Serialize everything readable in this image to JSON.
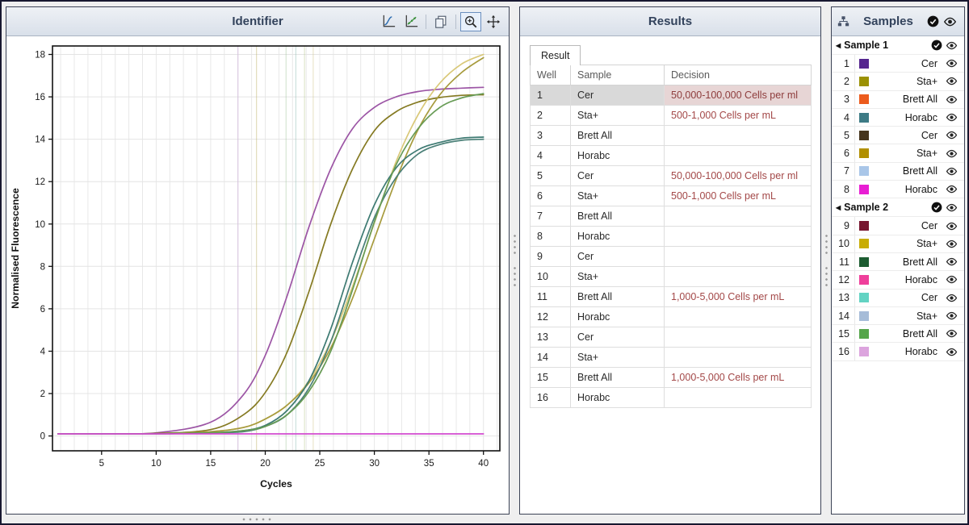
{
  "identifier": {
    "title": "Identifier",
    "toolbar": [
      {
        "name": "amplification-view"
      },
      {
        "name": "log-view"
      },
      {
        "name": "copy"
      },
      {
        "name": "zoom",
        "selected": true
      },
      {
        "name": "pan"
      }
    ]
  },
  "results": {
    "title": "Results",
    "tab": "Result",
    "columns": [
      "Well",
      "Sample",
      "Decision"
    ],
    "decision_color": "#a34848",
    "rows": [
      {
        "well": "1",
        "sample": "Cer",
        "decision": "50,000-100,000 Cells per ml",
        "highlight": true
      },
      {
        "well": "2",
        "sample": "Sta+",
        "decision": "500-1,000 Cells per mL"
      },
      {
        "well": "3",
        "sample": "Brett All",
        "decision": ""
      },
      {
        "well": "4",
        "sample": "Horabc",
        "decision": ""
      },
      {
        "well": "5",
        "sample": "Cer",
        "decision": "50,000-100,000 Cells per ml"
      },
      {
        "well": "6",
        "sample": "Sta+",
        "decision": "500-1,000 Cells per mL"
      },
      {
        "well": "7",
        "sample": "Brett All",
        "decision": ""
      },
      {
        "well": "8",
        "sample": "Horabc",
        "decision": ""
      },
      {
        "well": "9",
        "sample": "Cer",
        "decision": ""
      },
      {
        "well": "10",
        "sample": "Sta+",
        "decision": ""
      },
      {
        "well": "11",
        "sample": "Brett All",
        "decision": "1,000-5,000 Cells per mL"
      },
      {
        "well": "12",
        "sample": "Horabc",
        "decision": ""
      },
      {
        "well": "13",
        "sample": "Cer",
        "decision": ""
      },
      {
        "well": "14",
        "sample": "Sta+",
        "decision": ""
      },
      {
        "well": "15",
        "sample": "Brett All",
        "decision": "1,000-5,000 Cells per mL"
      },
      {
        "well": "16",
        "sample": "Horabc",
        "decision": ""
      }
    ]
  },
  "samples": {
    "title": "Samples",
    "groups": [
      {
        "name": "Sample 1",
        "wells": [
          {
            "num": "1",
            "label": "Cer",
            "color": "#55268f"
          },
          {
            "num": "2",
            "label": "Sta+",
            "color": "#9b9104"
          },
          {
            "num": "3",
            "label": "Brett All",
            "color": "#ec5b1d"
          },
          {
            "num": "4",
            "label": "Horabc",
            "color": "#3d7b85"
          },
          {
            "num": "5",
            "label": "Cer",
            "color": "#46351d"
          },
          {
            "num": "6",
            "label": "Sta+",
            "color": "#b18f00"
          },
          {
            "num": "7",
            "label": "Brett All",
            "color": "#a9c6e8"
          },
          {
            "num": "8",
            "label": "Horabc",
            "color": "#e81ed3"
          }
        ]
      },
      {
        "name": "Sample 2",
        "wells": [
          {
            "num": "9",
            "label": "Cer",
            "color": "#77152f"
          },
          {
            "num": "10",
            "label": "Sta+",
            "color": "#c8ac04"
          },
          {
            "num": "11",
            "label": "Brett All",
            "color": "#1d5c31"
          },
          {
            "num": "12",
            "label": "Horabc",
            "color": "#ef3f9b"
          },
          {
            "num": "13",
            "label": "Cer",
            "color": "#63d3c3"
          },
          {
            "num": "14",
            "label": "Sta+",
            "color": "#a6bcd8"
          },
          {
            "num": "15",
            "label": "Brett All",
            "color": "#55a54a"
          },
          {
            "num": "16",
            "label": "Horabc",
            "color": "#dca4de"
          }
        ]
      }
    ]
  },
  "chart_data": {
    "type": "line",
    "title": "",
    "xlabel": "Cycles",
    "ylabel": "Normalised Fluorescence",
    "xlim": [
      0.5,
      41.5
    ],
    "ylim": [
      -0.7,
      18.4
    ],
    "xticks": [
      5,
      10,
      15,
      20,
      25,
      30,
      35,
      40
    ],
    "yticks": [
      0,
      2,
      4,
      6,
      8,
      10,
      12,
      14,
      16,
      18
    ],
    "grid": true,
    "minor_x_grid_step": 1.25,
    "x": [
      1,
      5,
      10,
      15,
      18,
      20,
      22,
      24,
      26,
      28,
      30,
      32,
      34,
      36,
      38,
      40
    ],
    "series": [
      {
        "name": "Cer well 1",
        "color": "#9c55a5",
        "values": [
          0.1,
          0.1,
          0.15,
          0.65,
          1.95,
          3.8,
          6.6,
          9.85,
          12.6,
          14.5,
          15.5,
          16.0,
          16.25,
          16.36,
          16.41,
          16.45
        ]
      },
      {
        "name": "Sta+ well 2",
        "color": "#857a22",
        "values": [
          0.1,
          0.1,
          0.12,
          0.3,
          1.0,
          2.05,
          3.95,
          6.8,
          10.0,
          12.6,
          14.4,
          15.3,
          15.75,
          15.97,
          16.07,
          16.1
        ]
      },
      {
        "name": "Sta+ well 6",
        "color": "#d9c878",
        "values": [
          0.1,
          0.1,
          0.1,
          0.2,
          0.4,
          0.8,
          1.45,
          2.6,
          4.45,
          7.05,
          10.05,
          12.95,
          15.15,
          16.65,
          17.55,
          18.0
        ]
      },
      {
        "name": "Cer well 5",
        "color": "#a79b3d",
        "values": [
          0.1,
          0.1,
          0.1,
          0.2,
          0.4,
          0.8,
          1.45,
          2.5,
          4.15,
          6.5,
          9.3,
          12.1,
          14.45,
          16.1,
          17.15,
          17.85
        ]
      },
      {
        "name": "Brett All well 11",
        "color": "#3d7a72",
        "values": [
          0.1,
          0.1,
          0.1,
          0.15,
          0.25,
          0.5,
          1.2,
          2.6,
          5.05,
          8.2,
          10.9,
          12.65,
          13.5,
          13.85,
          14.05,
          14.1
        ]
      },
      {
        "name": "Brett All well 15",
        "color": "#4b8078",
        "values": [
          0.1,
          0.1,
          0.1,
          0.15,
          0.2,
          0.45,
          1.0,
          2.25,
          4.45,
          7.45,
          10.3,
          12.2,
          13.3,
          13.75,
          13.95,
          14.0
        ]
      },
      {
        "name": "Brett All well 3",
        "color": "#679b55",
        "values": [
          0.1,
          0.1,
          0.1,
          0.15,
          0.25,
          0.45,
          1.0,
          2.1,
          4.0,
          6.9,
          10.1,
          12.8,
          14.5,
          15.5,
          15.95,
          16.15
        ]
      },
      {
        "name": "Horabc well 8",
        "color": "#d24bd0",
        "values": [
          0.1,
          0.1,
          0.1,
          0.1,
          0.1,
          0.1,
          0.1,
          0.1,
          0.1,
          0.1,
          0.1,
          0.1,
          0.1,
          0.1,
          0.1,
          0.1
        ]
      }
    ],
    "cq_lines": [
      {
        "x": 17.5,
        "color": "#c7a3d6"
      },
      {
        "x": 19.2,
        "color": "#c0b46b"
      },
      {
        "x": 21.9,
        "color": "#a3c7a0"
      },
      {
        "x": 22.8,
        "color": "#8fbdb4"
      },
      {
        "x": 23.6,
        "color": "#b9cd92"
      },
      {
        "x": 24.4,
        "color": "#d2c88e"
      }
    ]
  }
}
